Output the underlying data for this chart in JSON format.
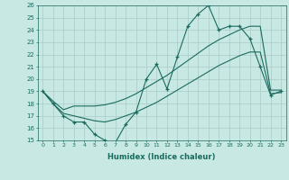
{
  "xlabel": "Humidex (Indice chaleur)",
  "x": [
    0,
    1,
    2,
    3,
    4,
    5,
    6,
    7,
    8,
    9,
    10,
    11,
    12,
    13,
    14,
    15,
    16,
    17,
    18,
    19,
    20,
    21,
    22,
    23
  ],
  "y_main": [
    19,
    18,
    17,
    16.5,
    16.5,
    15.5,
    15,
    14.8,
    16.3,
    17.3,
    20,
    21.2,
    19.2,
    21.8,
    24.3,
    25.3,
    26,
    24,
    24.3,
    24.3,
    23.3,
    21,
    18.7,
    19
  ],
  "y_upper": [
    19,
    18.2,
    17.5,
    17.8,
    17.8,
    17.8,
    17.9,
    18.1,
    18.4,
    18.8,
    19.3,
    19.8,
    20.3,
    20.9,
    21.5,
    22.1,
    22.7,
    23.2,
    23.6,
    24.0,
    24.3,
    24.3,
    19.1,
    19.1
  ],
  "y_lower": [
    19,
    18.0,
    17.2,
    17.0,
    16.8,
    16.6,
    16.5,
    16.7,
    17.0,
    17.3,
    17.7,
    18.1,
    18.6,
    19.1,
    19.6,
    20.1,
    20.6,
    21.1,
    21.5,
    21.9,
    22.2,
    22.2,
    18.8,
    18.9
  ],
  "line_color": "#1a6b5e",
  "bg_color": "#c8e8e4",
  "grid_color": "#a8ccc8",
  "ylim": [
    15,
    26
  ],
  "xlim": [
    -0.5,
    23.5
  ],
  "yticks": [
    15,
    16,
    17,
    18,
    19,
    20,
    21,
    22,
    23,
    24,
    25,
    26
  ],
  "xticks": [
    0,
    1,
    2,
    3,
    4,
    5,
    6,
    7,
    8,
    9,
    10,
    11,
    12,
    13,
    14,
    15,
    16,
    17,
    18,
    19,
    20,
    21,
    22,
    23
  ]
}
